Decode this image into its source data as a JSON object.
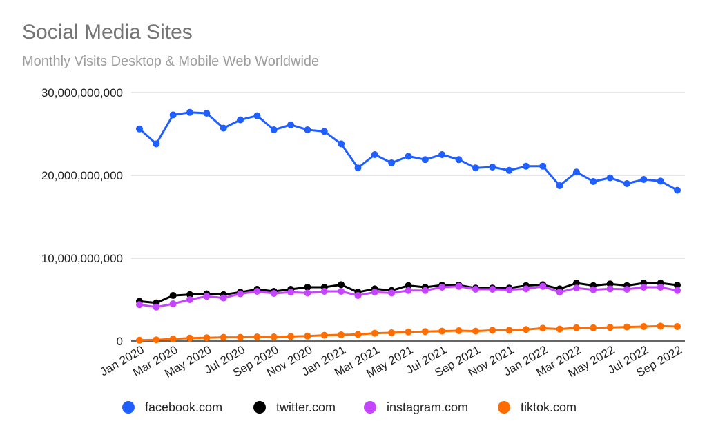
{
  "chart_data": {
    "type": "line",
    "title": "Social Media Sites",
    "subtitle": "Monthly Visits Desktop & Mobile Web Worldwide",
    "xlabel": "",
    "ylabel": "",
    "ylim": [
      0,
      30000000000
    ],
    "yticks": [
      "0",
      "10,000,000,000",
      "20,000,000,000",
      "30,000,000,000"
    ],
    "ytick_values": [
      0,
      10000000000,
      20000000000,
      30000000000
    ],
    "grid": true,
    "legend_position": "bottom",
    "x": [
      "Jan 2020",
      "Feb 2020",
      "Mar 2020",
      "Apr 2020",
      "May 2020",
      "Jun 2020",
      "Jul 2020",
      "Aug 2020",
      "Sep 2020",
      "Oct 2020",
      "Nov 2020",
      "Dec 2020",
      "Jan 2021",
      "Feb 2021",
      "Mar 2021",
      "Apr 2021",
      "May 2021",
      "Jun 2021",
      "Jul 2021",
      "Aug 2021",
      "Sep 2021",
      "Oct 2021",
      "Nov 2021",
      "Dec 2021",
      "Jan 2022",
      "Feb 2022",
      "Mar 2022",
      "Apr 2022",
      "May 2022",
      "Jun 2022",
      "Jul 2022",
      "Aug 2022",
      "Sep 2022"
    ],
    "xtick_labels": [
      "Jan 2020",
      "Mar 2020",
      "May 2020",
      "Jul 2020",
      "Sep 2020",
      "Nov 2020",
      "Jan 2021",
      "Mar 2021",
      "May 2021",
      "Jul 2021",
      "Sep 2021",
      "Nov 2021",
      "Jan 2022",
      "Mar 2022",
      "May 2022",
      "Jul 2022",
      "Sep 2022"
    ],
    "series": [
      {
        "name": "facebook.com",
        "color": "#1f5eff",
        "values": [
          25.6,
          23.8,
          27.3,
          27.6,
          27.5,
          25.7,
          26.7,
          27.2,
          25.5,
          26.1,
          25.5,
          25.3,
          23.8,
          20.9,
          22.5,
          21.5,
          22.3,
          21.9,
          22.5,
          21.9,
          20.9,
          21.0,
          20.6,
          21.1,
          21.1,
          18.75,
          20.4,
          19.25,
          19.7,
          19.0,
          19.5,
          19.3,
          18.2
        ]
      },
      {
        "name": "twitter.com",
        "color": "#000000",
        "values": [
          4.8,
          4.6,
          5.5,
          5.6,
          5.7,
          5.6,
          5.9,
          6.25,
          6.0,
          6.25,
          6.5,
          6.5,
          6.8,
          5.9,
          6.3,
          6.1,
          6.7,
          6.5,
          6.75,
          6.75,
          6.4,
          6.4,
          6.4,
          6.7,
          6.8,
          6.3,
          7.0,
          6.7,
          6.9,
          6.7,
          7.0,
          7.0,
          6.75
        ]
      },
      {
        "name": "instagram.com",
        "color": "#c545ff",
        "values": [
          4.4,
          4.1,
          4.5,
          5.0,
          5.4,
          5.2,
          5.7,
          6.0,
          5.75,
          5.9,
          5.8,
          6.0,
          6.0,
          5.5,
          5.9,
          5.8,
          6.1,
          6.1,
          6.5,
          6.6,
          6.25,
          6.25,
          6.2,
          6.3,
          6.6,
          5.9,
          6.4,
          6.2,
          6.3,
          6.25,
          6.5,
          6.5,
          6.1
        ]
      },
      {
        "name": "tiktok.com",
        "color": "#ff6d00",
        "values": [
          0.1,
          0.15,
          0.25,
          0.35,
          0.4,
          0.45,
          0.45,
          0.5,
          0.5,
          0.55,
          0.6,
          0.7,
          0.75,
          0.8,
          0.95,
          1.0,
          1.1,
          1.15,
          1.2,
          1.25,
          1.2,
          1.3,
          1.3,
          1.4,
          1.55,
          1.45,
          1.6,
          1.6,
          1.65,
          1.7,
          1.75,
          1.8,
          1.75
        ]
      }
    ],
    "value_unit_multiplier": 1000000000
  }
}
